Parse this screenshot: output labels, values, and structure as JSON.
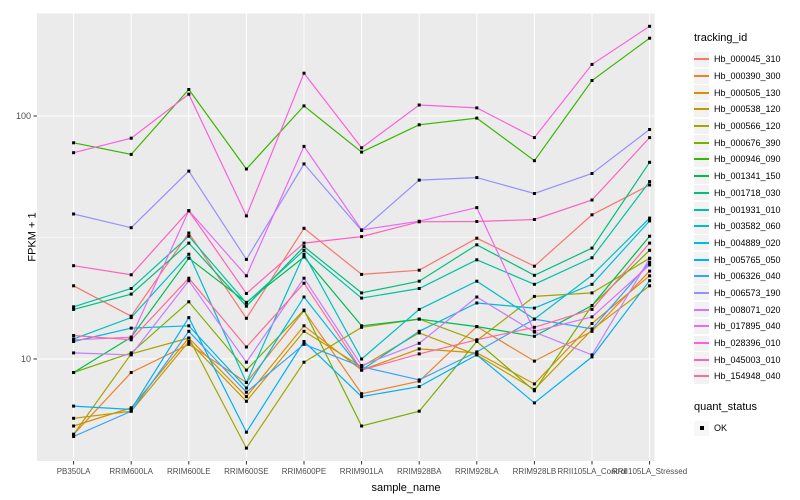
{
  "chart": {
    "panel_bg": "#EBEBEB",
    "grid_color": "#FFFFFF",
    "tick_color": "#333333",
    "tick_label_color": "#4D4D4D",
    "axis_title_color": "#000000",
    "point_color": "#000000"
  },
  "chart_data": {
    "type": "line",
    "title": "",
    "xlabel": "sample_name",
    "ylabel": "FPKM + 1",
    "y_scale": "log10",
    "y_tick_values": [
      100,
      10
    ],
    "y_tick_labels": [
      "100",
      "10"
    ],
    "y_minor_gridlines": [
      31.62
    ],
    "ylim": [
      3.8,
      265
    ],
    "grid": true,
    "legend_position": "right",
    "point_shape": "black-square",
    "categories": [
      "PB350LA",
      "RRIM600LA",
      "RRIM600LE",
      "RRIM600SE",
      "RRIM600PE",
      "RRIM901LA",
      "RRIM928BA",
      "RRIM928LA",
      "RRIM928LB",
      "RRII105LA_Control",
      "RRII105LA_Stressed"
    ],
    "series": [
      {
        "name": "Hb_000045_310",
        "color": "#F8766D",
        "values": [
          20,
          15,
          33,
          14.7,
          34.5,
          22.3,
          23.2,
          31.4,
          24.1,
          39.2,
          52
        ]
      },
      {
        "name": "Hb_000390_300",
        "color": "#EA8331",
        "values": [
          4.9,
          8.8,
          11.5,
          8.0,
          15.8,
          7.2,
          8.1,
          13.6,
          9.8,
          13.0,
          23
        ]
      },
      {
        "name": "Hb_000505_130",
        "color": "#D89000",
        "values": [
          5.3,
          6.3,
          12.2,
          7.0,
          13.7,
          9.0,
          11.0,
          10.6,
          7.9,
          14.0,
          22
        ]
      },
      {
        "name": "Hb_000538_120",
        "color": "#C09B00",
        "values": [
          5.7,
          6.1,
          11.8,
          6.7,
          13.0,
          9.3,
          12.8,
          10.4,
          7.5,
          13.2,
          20
        ]
      },
      {
        "name": "Hb_000566_120",
        "color": "#A3A500",
        "values": [
          4.9,
          10.5,
          12.2,
          4.3,
          9.7,
          13.5,
          14.6,
          11.9,
          18.1,
          18.7,
          26
        ]
      },
      {
        "name": "Hb_000676_390",
        "color": "#7CAE00",
        "values": [
          8.8,
          10.6,
          17.2,
          9.0,
          15.9,
          5.3,
          6.1,
          11.8,
          7.4,
          16.6,
          28
        ]
      },
      {
        "name": "Hb_000946_090",
        "color": "#39B600",
        "values": [
          77.6,
          69.5,
          128.6,
          60.5,
          110,
          71,
          92,
          98,
          65.5,
          140,
          209
        ]
      },
      {
        "name": "Hb_001341_150",
        "color": "#00BB4E",
        "values": [
          8.8,
          12.3,
          26,
          17.1,
          26.3,
          13.7,
          14.6,
          13.6,
          12.4,
          16.6,
          32
        ]
      },
      {
        "name": "Hb_001718_030",
        "color": "#00BF7D",
        "values": [
          16.0,
          18.5,
          30,
          16.5,
          29,
          18.7,
          20.9,
          29.5,
          22.1,
          28.6,
          64.5
        ]
      },
      {
        "name": "Hb_001931_010",
        "color": "#00C1A3",
        "values": [
          16.4,
          19.5,
          32,
          17.0,
          28,
          17.8,
          19.5,
          25.6,
          20.3,
          26.1,
          53.7
        ]
      },
      {
        "name": "Hb_003582_060",
        "color": "#00BFC4",
        "values": [
          12.1,
          14.8,
          27,
          8.0,
          27,
          10.0,
          16.0,
          20.9,
          14.6,
          22.1,
          38
        ]
      },
      {
        "name": "Hb_004889_020",
        "color": "#00BAE0",
        "values": [
          11.8,
          13.4,
          13.7,
          7.6,
          18,
          9.0,
          13.0,
          17.0,
          16.2,
          20.3,
          37
        ]
      },
      {
        "name": "Hb_005765_050",
        "color": "#00B0F6",
        "values": [
          6.4,
          6.2,
          14.8,
          5.0,
          11.8,
          7.0,
          7.7,
          10.4,
          6.6,
          10.2,
          21
        ]
      },
      {
        "name": "Hb_006326_040",
        "color": "#35A2FF",
        "values": [
          4.8,
          6.1,
          13.0,
          7.3,
          11.5,
          9.3,
          8.2,
          10.7,
          14.6,
          13.3,
          25
        ]
      },
      {
        "name": "Hb_006573_190",
        "color": "#9590FF",
        "values": [
          39.5,
          34.7,
          59.3,
          25.7,
          63.5,
          33.8,
          54.5,
          55.8,
          48,
          58,
          88
        ]
      },
      {
        "name": "Hb_008071_020",
        "color": "#C77CFF",
        "values": [
          10.6,
          10.4,
          21,
          9.7,
          21.5,
          9.4,
          11.6,
          18.0,
          12.9,
          10.4,
          25.9
        ]
      },
      {
        "name": "Hb_017895_040",
        "color": "#E76BF3",
        "values": [
          12.0,
          12.3,
          40.8,
          22,
          75,
          34,
          36.9,
          42,
          13.0,
          14.9,
          24.4
        ]
      },
      {
        "name": "Hb_028396_010",
        "color": "#FA62DB",
        "values": [
          70.6,
          81,
          123,
          38.8,
          150,
          74,
          111,
          108,
          81.5,
          163,
          234
        ]
      },
      {
        "name": "Hb_045003_010",
        "color": "#FF62BC",
        "values": [
          24.2,
          22.2,
          40.7,
          18.6,
          30,
          31.9,
          36.7,
          36.8,
          37.5,
          45.1,
          81.5
        ]
      },
      {
        "name": "Hb_154948_040",
        "color": "#FF6A98",
        "values": [
          12.5,
          12.0,
          21.5,
          11.2,
          20.5,
          9.0,
          10.5,
          12.0,
          13.5,
          16.0,
          30
        ]
      }
    ]
  },
  "legend": {
    "tracking_title": "tracking_id",
    "quant_title": "quant_status",
    "quant_ok_label": "OK"
  }
}
